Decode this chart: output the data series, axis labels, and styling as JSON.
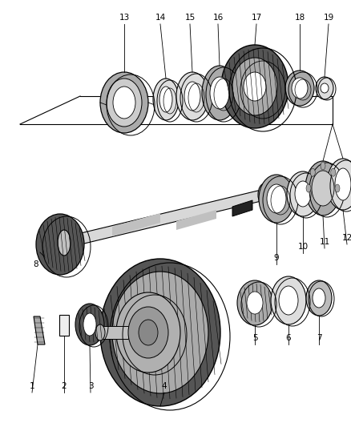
{
  "bg_color": "#ffffff",
  "lc": "#000000",
  "gray": "#aaaaaa",
  "dark": "#555555",
  "light": "#dddddd",
  "med": "#888888",
  "fig_width": 4.38,
  "fig_height": 5.33,
  "dpi": 100
}
